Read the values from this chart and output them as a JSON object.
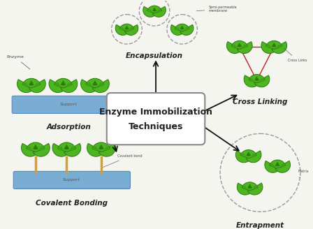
{
  "bg_color": "#f5f5f0",
  "box_facecolor": "#ffffff",
  "box_edgecolor": "#888888",
  "arrow_color": "#111111",
  "enzyme_body_color": "#4db520",
  "enzyme_dark_color": "#2d7a10",
  "enzyme_mid_color": "#3da015",
  "support_color": "#7aadd4",
  "support_edge_color": "#5588bb",
  "support_text_color": "#555555",
  "stem_color": "#c8a050",
  "dashed_color": "#999999",
  "crosslink_color": "#bb2222",
  "label_color": "#222222",
  "small_label_color": "#444444",
  "labels": {
    "adsorption": "Adsorption",
    "encapsulation": "Encapsulation",
    "cross_linking": "Cross Linking",
    "entrapment": "Entrapment",
    "covalent_bonding": "Covalent Bonding"
  },
  "small_labels": {
    "enzyme": "Enzyme",
    "semi_permeable": "Semi-permeable\nmembrane",
    "cross_links": "Cross Links",
    "matrix": "Matrix",
    "covalent_bond": "Covalent bond",
    "support": "Support"
  }
}
